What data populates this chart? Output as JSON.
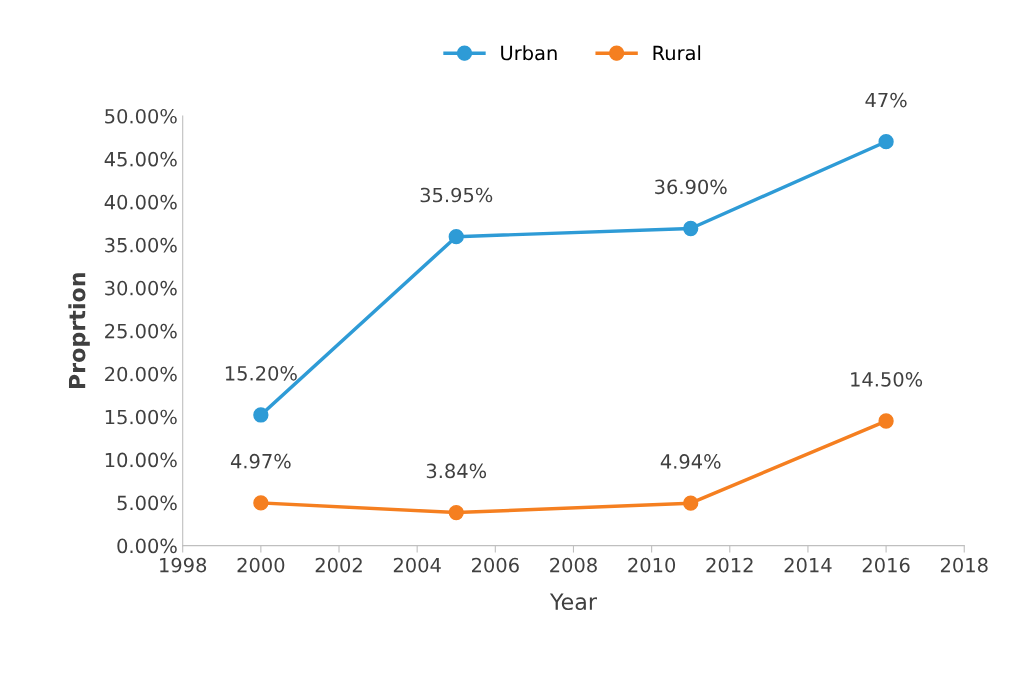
{
  "chart_data": {
    "type": "line",
    "xlabel": "Year",
    "ylabel": "Proprtion",
    "series": [
      {
        "name": "Urban",
        "color": "#2e9bd6",
        "x": [
          2000,
          2005,
          2011,
          2016
        ],
        "values": [
          15.2,
          35.95,
          36.9,
          47
        ],
        "value_labels": [
          "15.20%",
          "35.95%",
          "36.90%",
          "47%"
        ]
      },
      {
        "name": "Rural",
        "color": "#f57f20",
        "x": [
          2000,
          2005,
          2011,
          2016
        ],
        "values": [
          4.97,
          3.84,
          4.94,
          14.5
        ],
        "value_labels": [
          "4.97%",
          "3.84%",
          "4.94%",
          "14.50%"
        ]
      }
    ],
    "xlim": [
      1998,
      2018
    ],
    "xticks": [
      1998,
      2000,
      2002,
      2004,
      2006,
      2008,
      2010,
      2012,
      2014,
      2016,
      2018
    ],
    "ylim": [
      0,
      50
    ],
    "yticks": [
      {
        "value": 0,
        "label": "0.00%"
      },
      {
        "value": 5,
        "label": "5.00%"
      },
      {
        "value": 10,
        "label": "10.00%"
      },
      {
        "value": 15,
        "label": "15.00%"
      },
      {
        "value": 20,
        "label": "20.00%"
      },
      {
        "value": 25,
        "label": "25.00%"
      },
      {
        "value": 30,
        "label": "30.00%"
      },
      {
        "value": 35,
        "label": "35.00%"
      },
      {
        "value": 40,
        "label": "40.00%"
      },
      {
        "value": 45,
        "label": "45.00%"
      },
      {
        "value": 50,
        "label": "50.00%"
      }
    ],
    "grid": false,
    "legend": "top",
    "marker": "circle",
    "line_style": "solid"
  }
}
